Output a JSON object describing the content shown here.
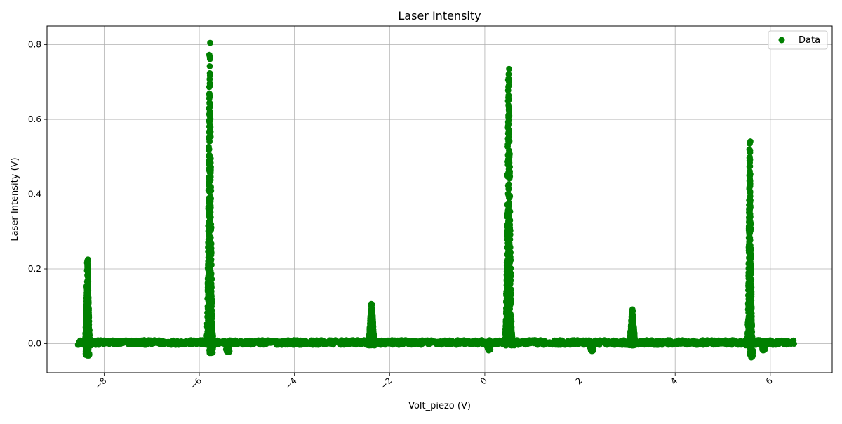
{
  "chart_data": {
    "type": "scatter",
    "title": "Laser Intensity",
    "xlabel": "Volt_piezo (V)",
    "ylabel": "Laser Intensity (V)",
    "xlim": [
      -9.2,
      7.3
    ],
    "ylim": [
      -0.078,
      0.85
    ],
    "xticks": [
      -8,
      -6,
      -4,
      -2,
      0,
      2,
      4,
      6
    ],
    "xtick_labels": [
      "−8",
      "−6",
      "−4",
      "−2",
      "0",
      "2",
      "4",
      "6"
    ],
    "xtick_rotation": 45,
    "yticks": [
      0.0,
      0.2,
      0.4,
      0.6,
      0.8
    ],
    "ytick_labels": [
      "0.0",
      "0.2",
      "0.4",
      "0.6",
      "0.8"
    ],
    "grid": true,
    "legend": {
      "position": "top-right",
      "entries": [
        "Data"
      ]
    },
    "color": "#008000",
    "x_range": [
      -8.55,
      6.5
    ],
    "baseline": {
      "level": 0.003,
      "noise": 0.009
    },
    "peaks": [
      {
        "x": -8.35,
        "height": 0.225,
        "width": 0.06
      },
      {
        "x": -5.78,
        "height": 0.805,
        "width": 0.07
      },
      {
        "x": -2.38,
        "height": 0.105,
        "width": 0.08
      },
      {
        "x": 0.5,
        "height": 0.735,
        "width": 0.08
      },
      {
        "x": 3.1,
        "height": 0.087,
        "width": 0.08
      },
      {
        "x": 5.57,
        "height": 0.541,
        "width": 0.06
      }
    ],
    "dips": [
      {
        "x": -8.35,
        "depth": -0.032
      },
      {
        "x": -5.75,
        "depth": -0.025
      },
      {
        "x": -5.4,
        "depth": -0.022
      },
      {
        "x": 0.08,
        "depth": -0.018
      },
      {
        "x": 2.25,
        "depth": -0.02
      },
      {
        "x": 5.6,
        "depth": -0.037
      },
      {
        "x": 5.85,
        "depth": -0.018
      }
    ]
  }
}
